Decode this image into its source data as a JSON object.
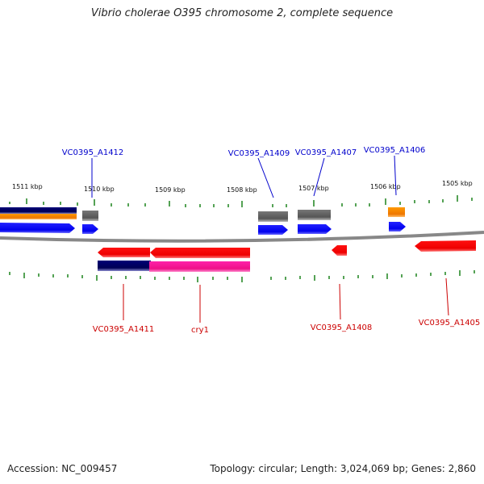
{
  "title": "Vibrio cholerae O395 chromosome 2, complete sequence",
  "accession_text": "Accession: NC_009457",
  "summary_text": "Topology: circular; Length: 3,024,069 bp; Genes: 2,860",
  "colors": {
    "forward_label": "#0000cc",
    "reverse_label": "#cc0000",
    "tick": "#2a8a2a",
    "backbone": "#888888",
    "cds": "#0000ff",
    "cds_reverse": "#ff0000",
    "gene_gray": "#666666",
    "rna_orange": "#ff8800",
    "navy": "#000066",
    "pink": "#ee1188"
  },
  "kbp_labels": [
    "1511 kbp",
    "1510 kbp",
    "1509 kbp",
    "1508 kbp",
    "1507 kbp",
    "1506 kbp",
    "1505 kbp"
  ],
  "genes_forward": [
    "VC0395_A1412",
    "VC0395_A1409",
    "VC0395_A1407",
    "VC0395_A1406"
  ],
  "genes_reverse": [
    "VC0395_A1411",
    "cry1",
    "VC0395_A1408",
    "VC0395_A1405"
  ]
}
